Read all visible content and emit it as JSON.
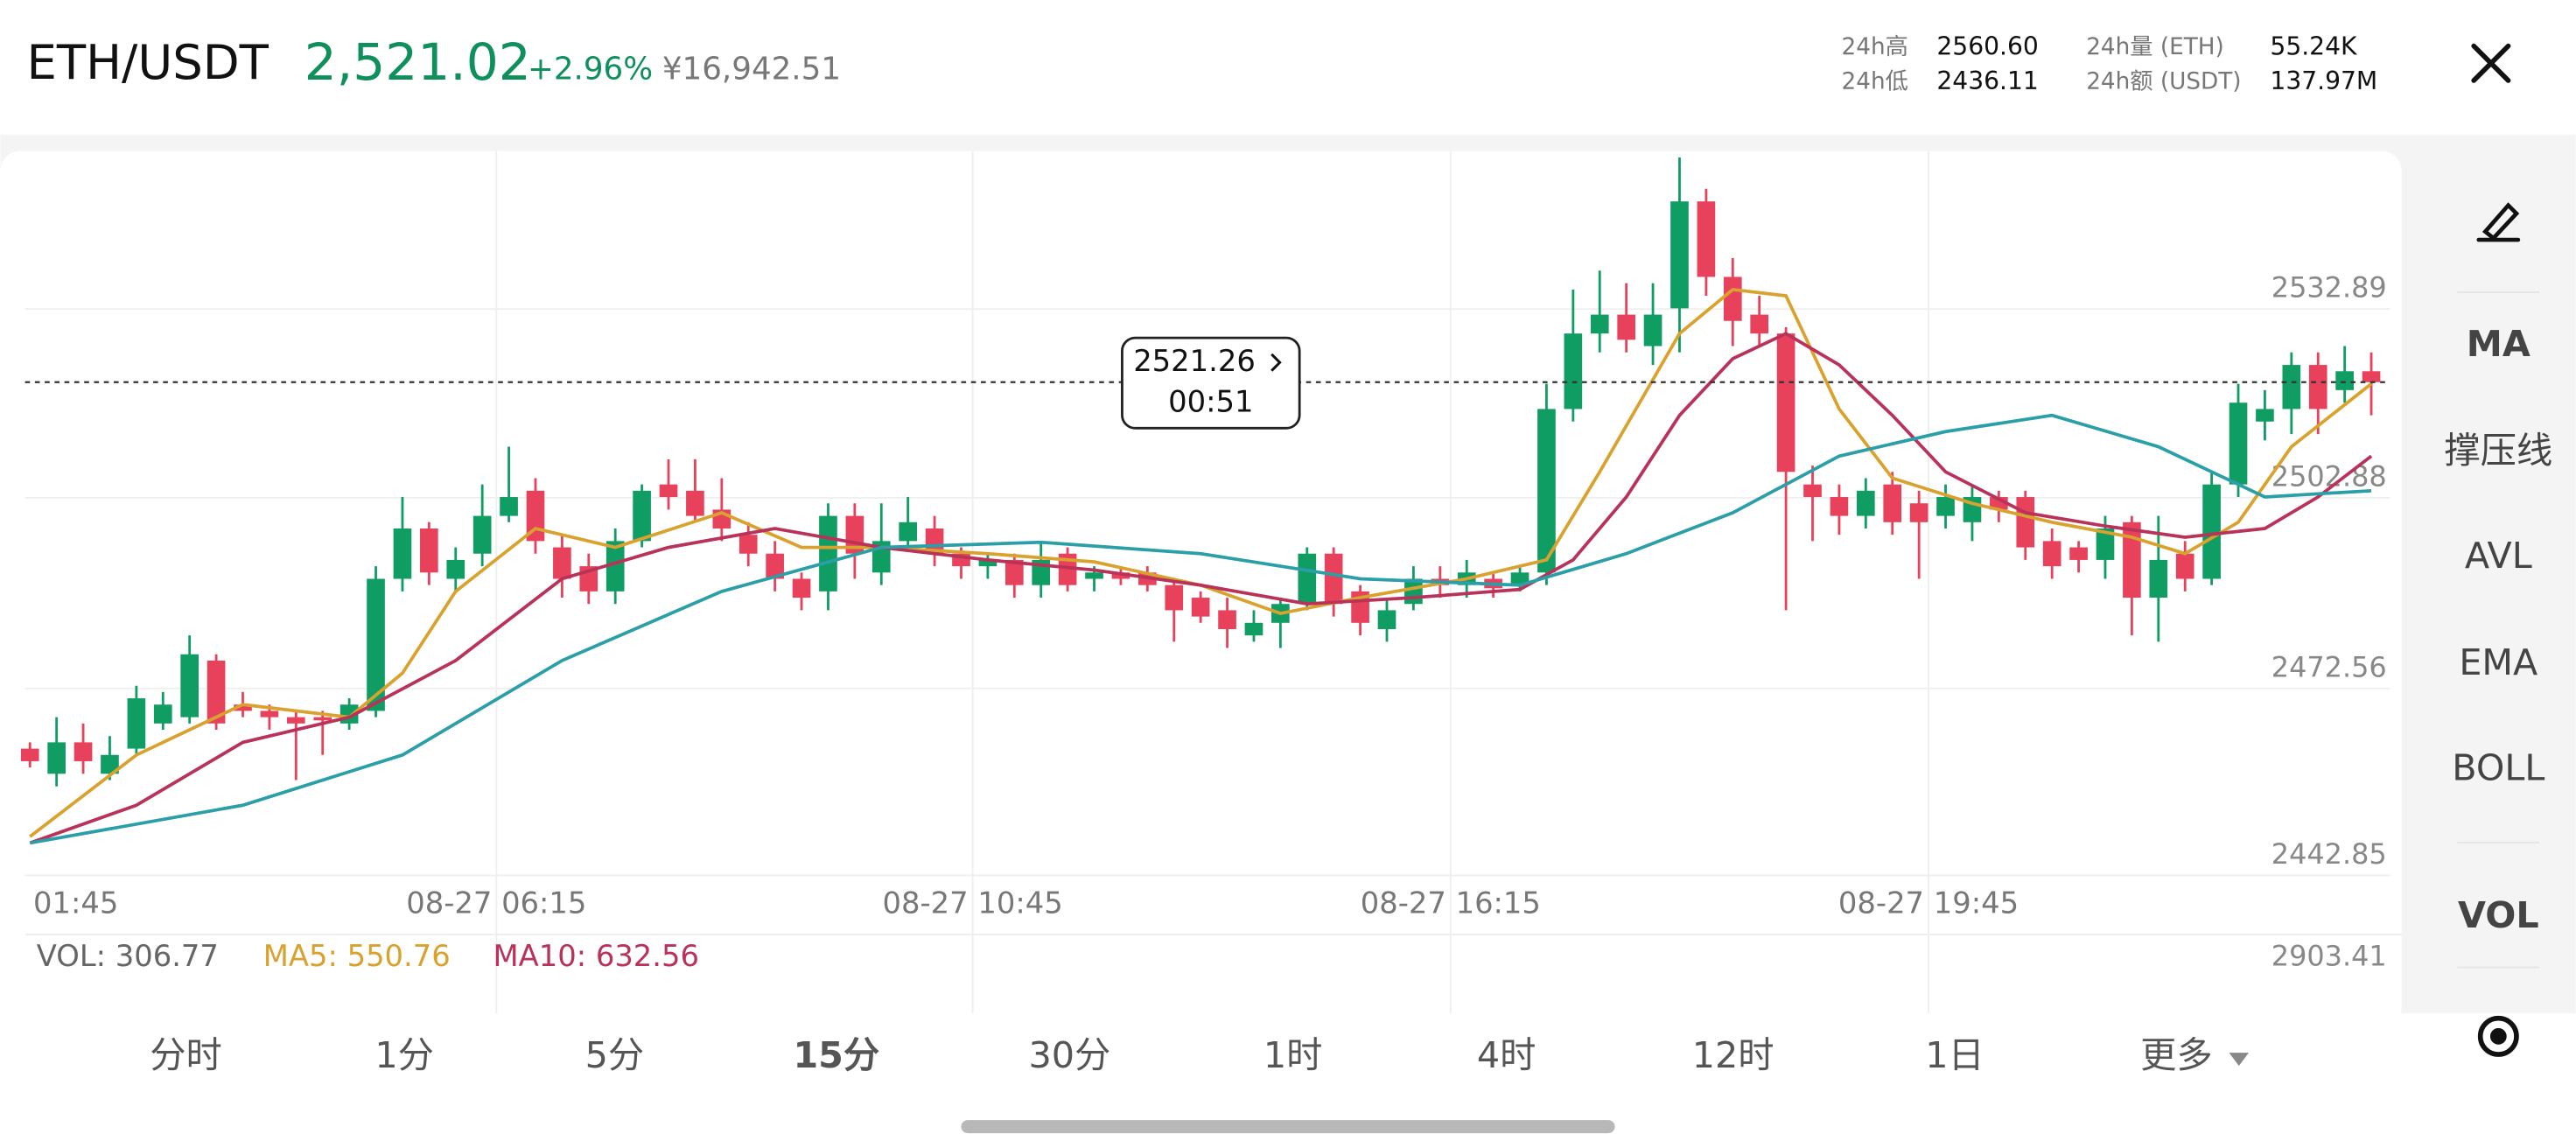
{
  "header": {
    "symbol": "ETH/USDT",
    "price": "2,521.02",
    "change": "+2.96%",
    "cny": "¥16,942.51",
    "stats": [
      {
        "label": "24h高",
        "value": "2560.60"
      },
      {
        "label": "24h低",
        "value": "2436.11"
      },
      {
        "label": "24h量 (ETH)",
        "value": "55.24K"
      },
      {
        "label": "24h额 (USDT)",
        "value": "137.97M"
      }
    ]
  },
  "chart_data": {
    "type": "candlestick",
    "up_color": "#0f9d63",
    "down_color": "#e8415b",
    "open": [
      2463,
      2459,
      2464,
      2459,
      2463,
      2467,
      2468,
      2477,
      2470,
      2469,
      2468,
      2468,
      2467,
      2469,
      2490,
      2498,
      2490,
      2494,
      2500,
      2504,
      2495,
      2492,
      2488,
      2496,
      2505,
      2504,
      2501,
      2497,
      2494,
      2490,
      2488,
      2500,
      2491,
      2496,
      2498,
      2494,
      2492,
      2493,
      2489,
      2494,
      2490,
      2491,
      2491,
      2489,
      2487,
      2485,
      2481,
      2483,
      2486,
      2494,
      2488,
      2482,
      2486,
      2490,
      2489,
      2490,
      2489,
      2491,
      2517,
      2529,
      2532,
      2527,
      2533,
      2550,
      2538,
      2532,
      2529,
      2505,
      2503,
      2500,
      2505,
      2502,
      2500,
      2499,
      2503,
      2503,
      2496,
      2495,
      2493,
      2499,
      2487,
      2494,
      2490,
      2505,
      2515,
      2517,
      2524,
      2520,
      2523
    ],
    "high": [
      2464,
      2468,
      2467,
      2465,
      2473,
      2472,
      2481,
      2478,
      2472,
      2470,
      2469,
      2469,
      2471,
      2492,
      2503,
      2499,
      2495,
      2505,
      2511,
      2506,
      2497,
      2494,
      2498,
      2505,
      2509,
      2509,
      2506,
      2499,
      2496,
      2491,
      2502,
      2502,
      2502,
      2503,
      2500,
      2495,
      2494,
      2494,
      2496,
      2495,
      2492,
      2492,
      2492,
      2490,
      2488,
      2487,
      2485,
      2487,
      2495,
      2495,
      2489,
      2487,
      2492,
      2492,
      2493,
      2491,
      2492,
      2521,
      2536,
      2539,
      2537,
      2537,
      2557,
      2552,
      2541,
      2535,
      2530,
      2508,
      2505,
      2506,
      2507,
      2504,
      2505,
      2505,
      2504,
      2504,
      2498,
      2496,
      2500,
      2500,
      2500,
      2496,
      2507,
      2521,
      2520,
      2526,
      2526,
      2527,
      2526
    ],
    "low": [
      2460,
      2457,
      2459,
      2458,
      2462,
      2466,
      2467,
      2466,
      2468,
      2466,
      2458,
      2462,
      2466,
      2468,
      2488,
      2489,
      2488,
      2492,
      2499,
      2494,
      2487,
      2486,
      2486,
      2495,
      2501,
      2499,
      2496,
      2492,
      2488,
      2485,
      2485,
      2490,
      2489,
      2495,
      2492,
      2490,
      2490,
      2487,
      2487,
      2488,
      2488,
      2489,
      2488,
      2480,
      2483,
      2479,
      2480,
      2479,
      2485,
      2484,
      2481,
      2480,
      2485,
      2487,
      2487,
      2487,
      2488,
      2489,
      2515,
      2526,
      2526,
      2524,
      2526,
      2535,
      2527,
      2527,
      2485,
      2496,
      2497,
      2498,
      2497,
      2490,
      2498,
      2496,
      2499,
      2493,
      2490,
      2491,
      2490,
      2481,
      2480,
      2488,
      2489,
      2503,
      2512,
      2513,
      2513,
      2518,
      2516
    ],
    "close": [
      2461,
      2464,
      2461,
      2462,
      2471,
      2470,
      2478,
      2467,
      2469,
      2468,
      2467,
      2467.5,
      2470,
      2490,
      2498,
      2491,
      2493,
      2500,
      2503,
      2496,
      2490,
      2488,
      2496,
      2504,
      2503,
      2500,
      2498,
      2494,
      2490,
      2487,
      2500,
      2494,
      2496,
      2499,
      2494,
      2492,
      2493,
      2489,
      2493,
      2489,
      2491,
      2490,
      2489,
      2485,
      2484,
      2482,
      2483,
      2486,
      2494,
      2486,
      2483,
      2485,
      2490,
      2489,
      2491,
      2488.5,
      2491,
      2517,
      2529,
      2532,
      2528,
      2532,
      2550,
      2538,
      2531,
      2529,
      2507,
      2503,
      2500,
      2504,
      2499,
      2499,
      2503,
      2503,
      2501,
      2495,
      2492,
      2493,
      2498,
      2487,
      2493,
      2490,
      2505,
      2518,
      2517,
      2524,
      2517,
      2523,
      2521.26
    ],
    "ylim": [
      2442.85,
      2558
    ],
    "yticks": [
      2532.89,
      2502.88,
      2472.56,
      2442.85
    ],
    "time_labels": [
      "01:45",
      "08-27 06:15",
      "08-27 10:45",
      "08-27 16:15",
      "08-27 19:45"
    ],
    "lines": [
      {
        "color": "#d9a22e",
        "x": [
          0,
          4,
          8,
          12,
          14,
          16,
          19,
          22,
          26,
          29,
          32,
          36,
          40,
          44,
          47,
          50,
          54,
          57,
          59,
          62,
          64,
          66,
          68,
          70,
          73,
          76,
          79,
          81,
          83,
          85,
          88
        ],
        "values": [
          2449,
          2462,
          2470,
          2468,
          2475,
          2488,
          2498,
          2495,
          2500.5,
          2495,
          2495,
          2494,
          2492.7,
          2489,
          2484.5,
          2487,
          2490,
          2493,
          2507,
          2529,
          2536,
          2535,
          2517,
          2506,
          2502,
          2499,
          2496.6,
          2494,
          2499,
          2511,
          2521
        ]
      },
      {
        "color": "#b8325a",
        "x": [
          0,
          4,
          8,
          12,
          16,
          20,
          24,
          28,
          32,
          36,
          40,
          44,
          48,
          52,
          56,
          58,
          60,
          62,
          64,
          66,
          68,
          70,
          72,
          75,
          78,
          81,
          84,
          86,
          88
        ],
        "values": [
          2448,
          2454,
          2464,
          2468,
          2477,
          2490,
          2495,
          2498,
          2495,
          2493,
          2491.4,
          2489,
          2486,
          2487,
          2488.3,
          2493,
          2503,
          2516,
          2525,
          2529,
          2524,
          2516,
          2507,
          2500.5,
          2498.4,
          2496.6,
          2498,
          2503,
          2509.5
        ]
      },
      {
        "color": "#2a9fa8",
        "x": [
          0,
          8,
          14,
          20,
          26,
          32,
          38,
          44,
          50,
          56,
          60,
          64,
          68,
          72,
          76,
          80,
          84,
          88
        ],
        "values": [
          2448,
          2454,
          2462,
          2477,
          2488,
          2495,
          2495.8,
          2494,
          2490,
          2489,
          2494,
          2500.5,
          2509.5,
          2513.4,
          2516,
          2511,
          2503,
          2504
        ]
      }
    ],
    "last_price": 2521.26,
    "countdown": "00:51"
  },
  "volume_panel": {
    "legend": [
      {
        "text": "VOL: 306.77",
        "color": "#666666"
      },
      {
        "text": "MA5: 550.76",
        "color": "#d9a22e"
      },
      {
        "text": "MA10: 632.56",
        "color": "#b8325a"
      }
    ],
    "max_label": "2903.41"
  },
  "indicators": [
    "MA",
    "撑压线",
    "AVL",
    "EMA",
    "BOLL",
    "VOL"
  ],
  "timeframes": [
    "分时",
    "1分",
    "5分",
    "15分",
    "30分",
    "1时",
    "4时",
    "12时",
    "1日",
    "更多"
  ]
}
